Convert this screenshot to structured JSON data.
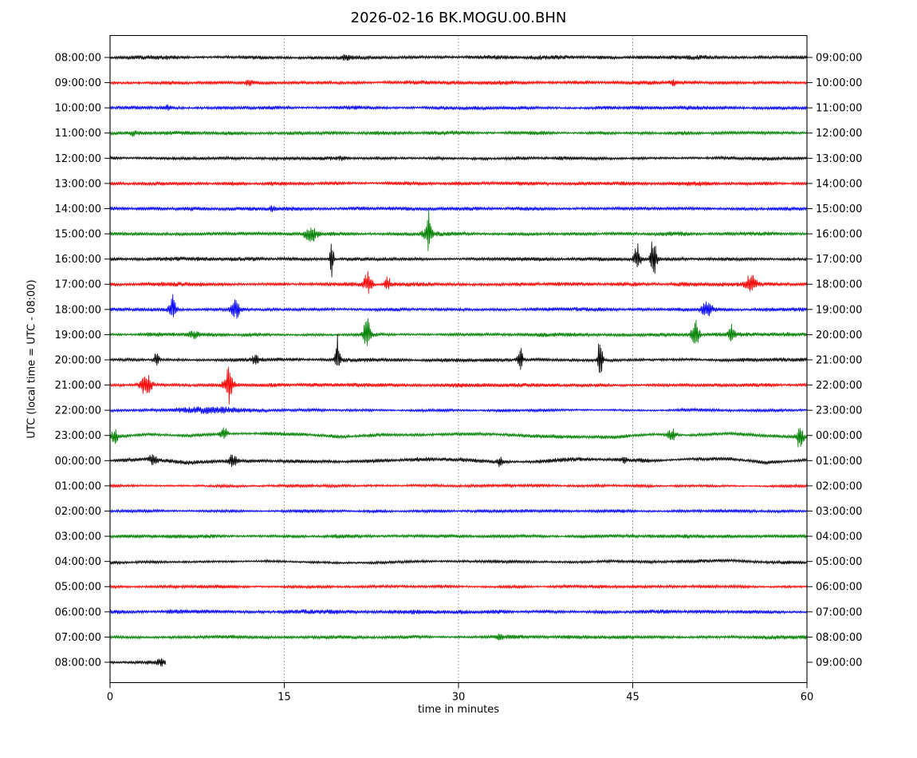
{
  "figure": {
    "title": "2026-02-16 BK.MOGU.00.BHN",
    "xlabel": "time in minutes",
    "ylabel": "UTC (local time = UTC - 08:00)",
    "background": "#ffffff"
  },
  "axes": {
    "x_range": [
      0,
      60
    ],
    "x_ticks": [
      0,
      15,
      30,
      45,
      60
    ],
    "x_gridlines": [
      15,
      30,
      45
    ],
    "grid_style": "dotted",
    "frame_color": "#000000"
  },
  "colors": {
    "black": "#000000",
    "red": "#ff0000",
    "blue": "#0000ff",
    "green": "#008000"
  },
  "chart_data": {
    "type": "line",
    "subtype": "seismogram-helicorder-dayplot",
    "title": "2026-02-16 BK.MOGU.00.BHN",
    "date": "2026-02-16",
    "station_id": "BK.MOGU.00.BHN",
    "minutes_per_row": 60,
    "timezone_note": "local time = UTC - 08:00",
    "legend_position": "none",
    "grid": true,
    "rows": [
      {
        "left_label": "08:00:00",
        "right_label": "09:00:00",
        "color": "black",
        "noise": 2.2,
        "wander": 0.5,
        "events": [
          {
            "m": 20.3,
            "a": 3,
            "w": 0.5
          }
        ]
      },
      {
        "left_label": "09:00:00",
        "right_label": "10:00:00",
        "color": "red",
        "noise": 2.2,
        "wander": 0.4,
        "events": [
          {
            "m": 12,
            "a": 3,
            "w": 0.4
          },
          {
            "m": 48.5,
            "a": 2.5,
            "w": 0.4
          }
        ]
      },
      {
        "left_label": "10:00:00",
        "right_label": "11:00:00",
        "color": "blue",
        "noise": 2.0,
        "wander": 0.4,
        "events": [
          {
            "m": 5,
            "a": 2.5,
            "w": 0.4
          }
        ]
      },
      {
        "left_label": "11:00:00",
        "right_label": "12:00:00",
        "color": "green",
        "noise": 2.1,
        "wander": 0.4,
        "events": [
          {
            "m": 2,
            "a": 3,
            "w": 0.4
          }
        ]
      },
      {
        "left_label": "12:00:00",
        "right_label": "13:00:00",
        "color": "black",
        "noise": 2.0,
        "wander": 0.5,
        "events": [
          {
            "m": 20,
            "a": 2.5,
            "w": 0.4
          }
        ]
      },
      {
        "left_label": "13:00:00",
        "right_label": "14:00:00",
        "color": "red",
        "noise": 2.2,
        "wander": 0.4,
        "events": []
      },
      {
        "left_label": "14:00:00",
        "right_label": "15:00:00",
        "color": "blue",
        "noise": 2.0,
        "wander": 0.4,
        "events": [
          {
            "m": 14,
            "a": 2.5,
            "w": 0.3
          }
        ]
      },
      {
        "left_label": "15:00:00",
        "right_label": "16:00:00",
        "color": "green",
        "noise": 2.2,
        "wander": 0.4,
        "events": [
          {
            "m": 17.3,
            "a": 9,
            "w": 0.9
          },
          {
            "m": 27.4,
            "a": 7,
            "w": 0.8
          },
          {
            "m": 27.45,
            "a": 14,
            "w": 0.3,
            "dn": 2.1
          }
        ]
      },
      {
        "left_label": "16:00:00",
        "right_label": "17:00:00",
        "color": "black",
        "noise": 2.2,
        "wander": 0.4,
        "events": [
          {
            "m": 19.1,
            "a": 26,
            "w": 0.25,
            "dn": 1.15
          },
          {
            "m": 45.4,
            "a": 13,
            "w": 0.45,
            "dn": 1.4
          },
          {
            "m": 46.8,
            "a": 21,
            "w": 0.4,
            "dn": 1.5
          }
        ]
      },
      {
        "left_label": "17:00:00",
        "right_label": "18:00:00",
        "color": "red",
        "noise": 2.4,
        "wander": 0.4,
        "events": [
          {
            "m": 22.2,
            "a": 10,
            "w": 0.6,
            "dn": 1.8
          },
          {
            "m": 23.9,
            "a": 8,
            "w": 0.4,
            "dn": 1.2
          },
          {
            "m": 55.2,
            "a": 9,
            "w": 0.8,
            "dn": 1.3
          }
        ]
      },
      {
        "left_label": "18:00:00",
        "right_label": "19:00:00",
        "color": "blue",
        "noise": 2.0,
        "wander": 0.4,
        "events": [
          {
            "m": 5.4,
            "a": 10,
            "w": 0.5,
            "dn": 1.9
          },
          {
            "m": 10.8,
            "a": 12,
            "w": 0.55
          },
          {
            "m": 51.4,
            "a": 7,
            "w": 0.8,
            "dn": 1.2
          }
        ]
      },
      {
        "left_label": "19:00:00",
        "right_label": "20:00:00",
        "color": "green",
        "noise": 2.2,
        "wander": 0.4,
        "events": [
          {
            "m": 7.2,
            "a": 4,
            "w": 0.6
          },
          {
            "m": 22.1,
            "a": 13,
            "w": 0.5,
            "dn": 1.6
          },
          {
            "m": 50.4,
            "a": 16,
            "w": 0.5,
            "dn": 1.5
          },
          {
            "m": 53.5,
            "a": 8,
            "w": 0.45,
            "dn": 1.4
          }
        ]
      },
      {
        "left_label": "20:00:00",
        "right_label": "21:00:00",
        "color": "black",
        "noise": 2.0,
        "wander": 0.5,
        "events": [
          {
            "m": 4.0,
            "a": 9,
            "w": 0.4
          },
          {
            "m": 12.5,
            "a": 6,
            "w": 0.5
          },
          {
            "m": 19.6,
            "a": 12,
            "w": 0.3,
            "dn": 2.8
          },
          {
            "m": 35.3,
            "a": 12,
            "w": 0.4,
            "dn": 1.3
          },
          {
            "m": 42.2,
            "a": 20,
            "w": 0.3,
            "dn": 1.9
          }
        ]
      },
      {
        "left_label": "21:00:00",
        "right_label": "22:00:00",
        "color": "red",
        "noise": 2.2,
        "wander": 0.4,
        "events": [
          {
            "m": 3.1,
            "a": 13,
            "w": 0.8
          },
          {
            "m": 10.2,
            "a": 9,
            "w": 0.8
          },
          {
            "m": 10.25,
            "a": 16,
            "w": 0.35,
            "dn": 1.8
          }
        ]
      },
      {
        "left_label": "22:00:00",
        "right_label": "23:00:00",
        "color": "blue",
        "noise": 1.6,
        "wander": 0.5,
        "events": [
          {
            "m": 8.5,
            "a": 3,
            "w": 5.0
          }
        ]
      },
      {
        "left_label": "23:00:00",
        "right_label": "00:00:00",
        "color": "green",
        "noise": 2.0,
        "wander": 2.6,
        "events": [
          {
            "m": 0.4,
            "a": 9,
            "w": 0.5
          },
          {
            "m": 9.8,
            "a": 8,
            "w": 0.55
          },
          {
            "m": 48.4,
            "a": 7,
            "w": 0.7
          },
          {
            "m": 59.4,
            "a": 15,
            "w": 0.5
          }
        ]
      },
      {
        "left_label": "00:00:00",
        "right_label": "01:00:00",
        "color": "black",
        "noise": 2.2,
        "wander": 2.6,
        "events": [
          {
            "m": 3.7,
            "a": 8,
            "w": 0.6
          },
          {
            "m": 10.6,
            "a": 8,
            "w": 0.6
          },
          {
            "m": 33.6,
            "a": 5,
            "w": 0.45
          },
          {
            "m": 44.3,
            "a": 4,
            "w": 0.35
          }
        ]
      },
      {
        "left_label": "01:00:00",
        "right_label": "02:00:00",
        "color": "red",
        "noise": 1.6,
        "wander": 0.4,
        "events": []
      },
      {
        "left_label": "02:00:00",
        "right_label": "03:00:00",
        "color": "blue",
        "noise": 1.8,
        "wander": 0.4,
        "events": []
      },
      {
        "left_label": "03:00:00",
        "right_label": "04:00:00",
        "color": "green",
        "noise": 2.0,
        "wander": 0.4,
        "events": []
      },
      {
        "left_label": "04:00:00",
        "right_label": "05:00:00",
        "color": "black",
        "noise": 1.8,
        "wander": 1.8,
        "events": []
      },
      {
        "left_label": "05:00:00",
        "right_label": "06:00:00",
        "color": "red",
        "noise": 1.7,
        "wander": 0.4,
        "events": []
      },
      {
        "left_label": "06:00:00",
        "right_label": "07:00:00",
        "color": "blue",
        "noise": 2.2,
        "wander": 0.4,
        "events": []
      },
      {
        "left_label": "07:00:00",
        "right_label": "08:00:00",
        "color": "green",
        "noise": 2.1,
        "wander": 0.5,
        "events": [
          {
            "m": 33.5,
            "a": 3,
            "w": 0.4
          }
        ]
      },
      {
        "left_label": "08:00:00",
        "right_label": "09:00:00",
        "color": "black",
        "noise": 2.4,
        "wander": 0.5,
        "end_minute": 4.8,
        "events": [
          {
            "m": 4.4,
            "a": 3,
            "w": 0.5
          }
        ]
      }
    ]
  }
}
